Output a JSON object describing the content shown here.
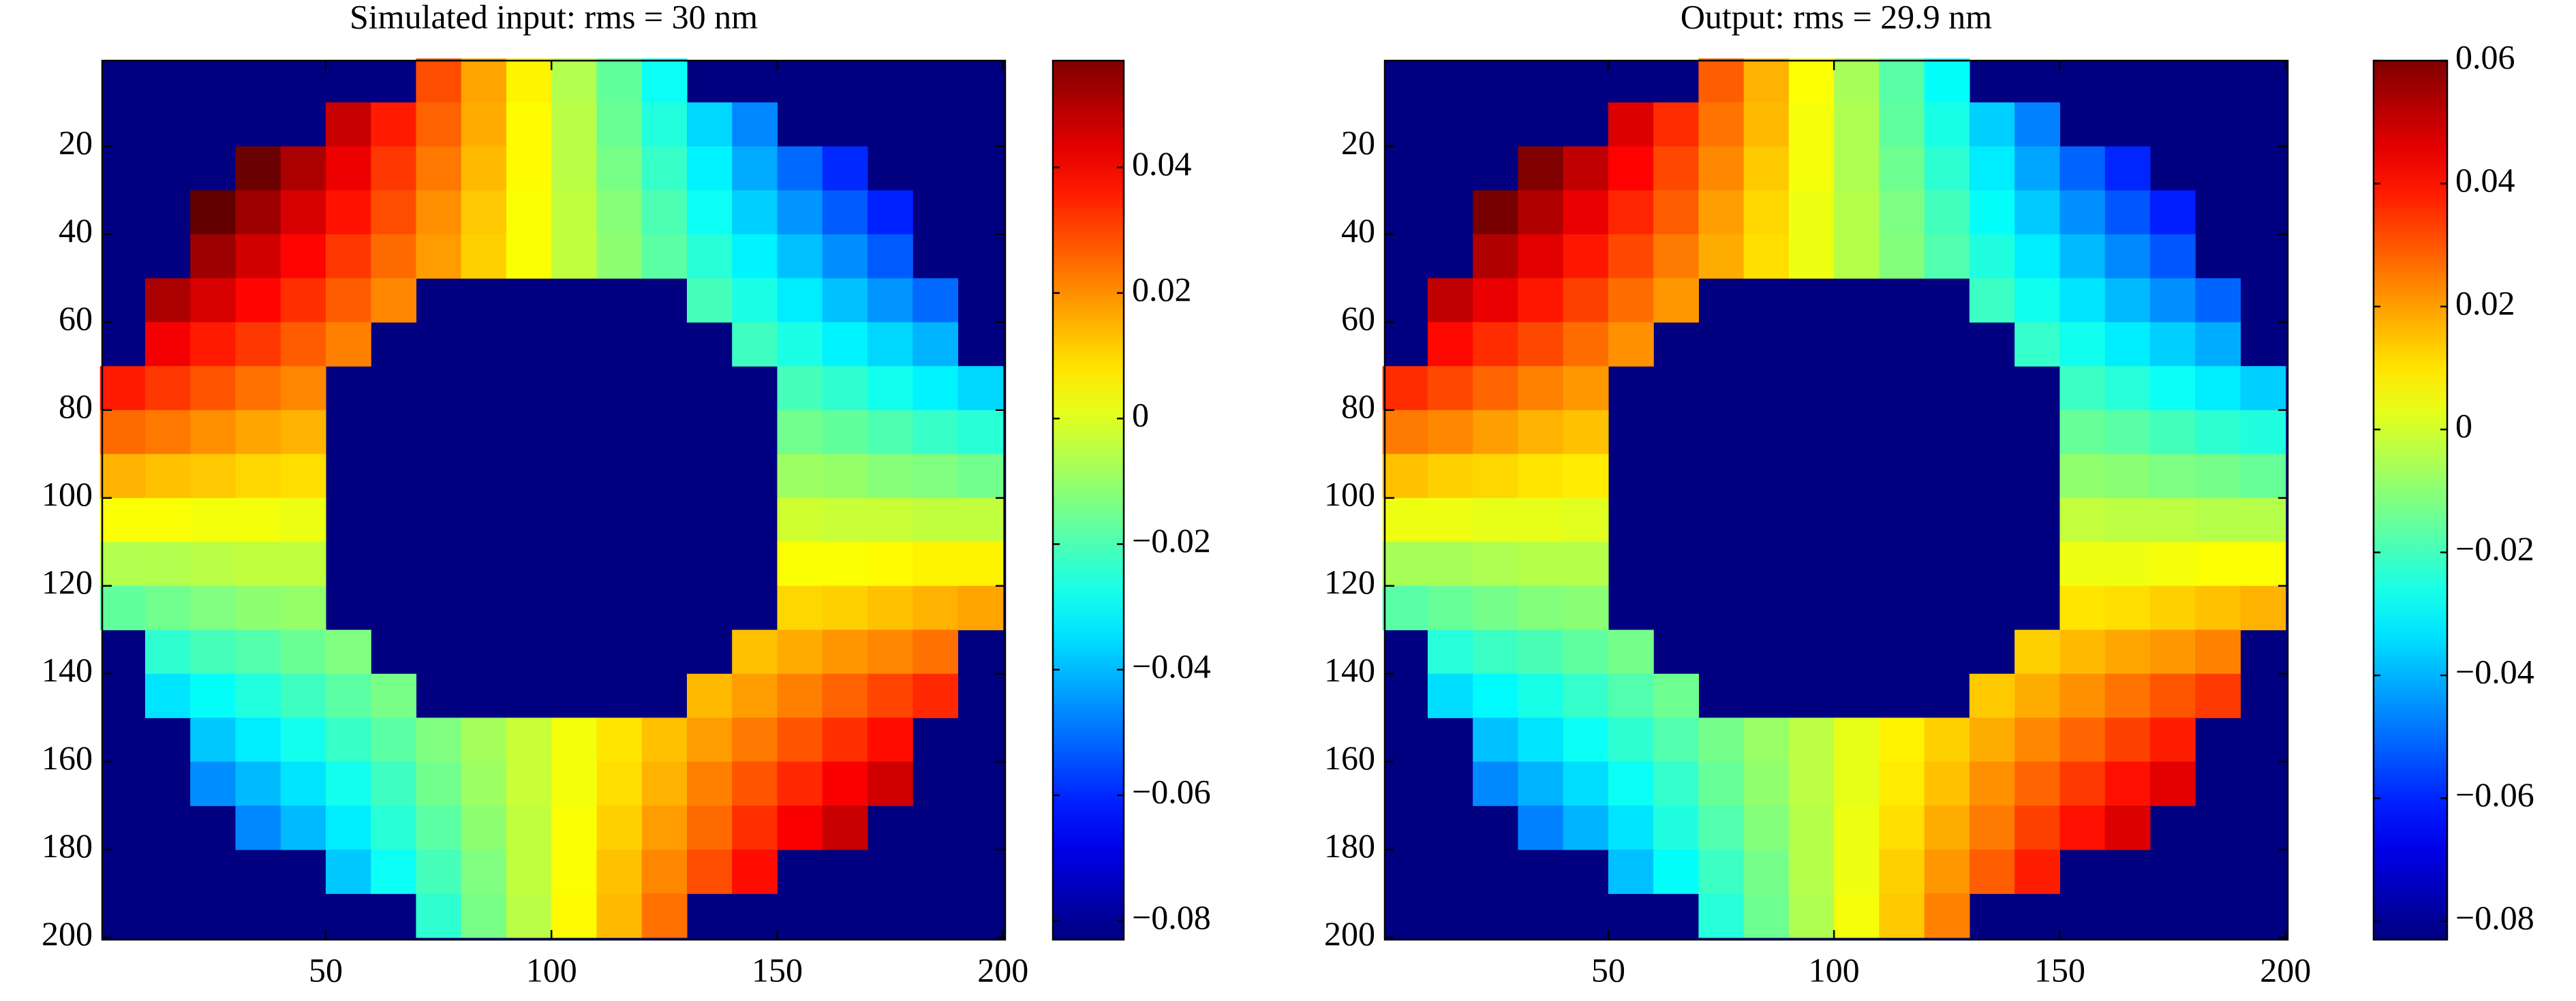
{
  "chart_data": [
    {
      "type": "heatmap",
      "title": "Simulated input: rms = 30 nm",
      "x": [
        5,
        15,
        25,
        35,
        45,
        55,
        65,
        75,
        85,
        95,
        105,
        115,
        125,
        135,
        145,
        155,
        165,
        175,
        185,
        195
      ],
      "y": [
        5,
        15,
        25,
        35,
        45,
        55,
        65,
        75,
        85,
        95,
        105,
        115,
        125,
        135,
        145,
        155,
        165,
        175,
        185,
        195
      ],
      "z": [
        [
          null,
          null,
          null,
          null,
          null,
          null,
          null,
          0.029,
          0.017,
          0.006,
          -0.006,
          -0.017,
          -0.029,
          null,
          null,
          null,
          null,
          null,
          null,
          null
        ],
        [
          null,
          null,
          null,
          null,
          null,
          0.047,
          0.036,
          0.026,
          0.016,
          0.005,
          -0.005,
          -0.016,
          -0.026,
          -0.036,
          -0.047,
          null,
          null,
          null,
          null,
          null
        ],
        [
          null,
          null,
          null,
          0.06,
          0.051,
          0.042,
          0.032,
          0.023,
          0.014,
          0.005,
          -0.005,
          -0.014,
          -0.023,
          -0.032,
          -0.042,
          -0.051,
          -0.06,
          null,
          null,
          null
        ],
        [
          null,
          null,
          0.061,
          0.053,
          0.045,
          0.037,
          0.029,
          0.02,
          0.012,
          0.004,
          -0.004,
          -0.012,
          -0.02,
          -0.029,
          -0.037,
          -0.045,
          -0.053,
          -0.061,
          null,
          null
        ],
        [
          null,
          null,
          0.053,
          0.046,
          0.039,
          0.032,
          0.025,
          0.018,
          0.011,
          0.004,
          -0.004,
          -0.011,
          -0.018,
          -0.025,
          -0.032,
          -0.039,
          -0.046,
          -0.053,
          null,
          null
        ],
        [
          null,
          0.051,
          0.045,
          0.039,
          0.033,
          0.027,
          0.021,
          null,
          null,
          null,
          null,
          null,
          null,
          -0.021,
          -0.027,
          -0.033,
          -0.039,
          -0.045,
          -0.051,
          null
        ],
        [
          null,
          0.041,
          0.036,
          0.032,
          0.027,
          0.022,
          null,
          null,
          null,
          null,
          null,
          null,
          null,
          null,
          -0.022,
          -0.027,
          -0.032,
          -0.036,
          -0.041,
          null
        ],
        [
          0.036,
          0.032,
          0.028,
          0.024,
          0.021,
          null,
          null,
          null,
          null,
          null,
          null,
          null,
          null,
          null,
          null,
          -0.021,
          -0.024,
          -0.028,
          -0.032,
          -0.036
        ],
        [
          0.025,
          0.023,
          0.02,
          0.017,
          0.015,
          null,
          null,
          null,
          null,
          null,
          null,
          null,
          null,
          null,
          null,
          -0.015,
          -0.017,
          -0.02,
          -0.023,
          -0.025
        ],
        [
          0.015,
          0.013,
          0.012,
          0.01,
          0.009,
          null,
          null,
          null,
          null,
          null,
          null,
          null,
          null,
          null,
          null,
          -0.009,
          -0.01,
          -0.012,
          -0.013,
          -0.015
        ],
        [
          0.004,
          0.004,
          0.003,
          0.003,
          0.002,
          null,
          null,
          null,
          null,
          null,
          null,
          null,
          null,
          null,
          null,
          -0.002,
          -0.003,
          -0.003,
          -0.004,
          -0.004
        ],
        [
          -0.006,
          -0.006,
          -0.005,
          -0.004,
          -0.004,
          null,
          null,
          null,
          null,
          null,
          null,
          null,
          null,
          null,
          null,
          0.004,
          0.004,
          0.005,
          0.006,
          0.006
        ],
        [
          -0.017,
          -0.015,
          -0.013,
          -0.011,
          -0.01,
          null,
          null,
          null,
          null,
          null,
          null,
          null,
          null,
          null,
          null,
          0.01,
          0.011,
          0.013,
          0.015,
          0.017
        ],
        [
          null,
          -0.024,
          -0.021,
          -0.019,
          -0.016,
          -0.013,
          null,
          null,
          null,
          null,
          null,
          null,
          null,
          null,
          0.013,
          0.016,
          0.019,
          0.021,
          0.024,
          null
        ],
        [
          null,
          -0.034,
          -0.03,
          -0.026,
          -0.022,
          -0.018,
          -0.014,
          null,
          null,
          null,
          null,
          null,
          null,
          0.014,
          0.018,
          0.022,
          0.026,
          0.03,
          0.034,
          null
        ],
        [
          null,
          null,
          -0.038,
          -0.033,
          -0.028,
          -0.023,
          -0.018,
          -0.013,
          -0.008,
          -0.003,
          0.003,
          0.008,
          0.013,
          0.018,
          0.023,
          0.028,
          0.033,
          0.038,
          null,
          null
        ],
        [
          null,
          null,
          -0.046,
          -0.04,
          -0.034,
          -0.028,
          -0.022,
          -0.015,
          -0.009,
          -0.003,
          0.003,
          0.009,
          0.015,
          0.022,
          0.028,
          0.034,
          0.04,
          0.046,
          null,
          null
        ],
        [
          null,
          null,
          null,
          -0.047,
          -0.04,
          -0.033,
          -0.025,
          -0.018,
          -0.011,
          -0.004,
          0.004,
          0.011,
          0.018,
          0.025,
          0.033,
          0.04,
          0.047,
          null,
          null,
          null
        ],
        [
          null,
          null,
          null,
          null,
          null,
          -0.038,
          -0.029,
          -0.021,
          -0.013,
          -0.004,
          0.004,
          0.013,
          0.021,
          0.029,
          0.038,
          null,
          null,
          null,
          null,
          null
        ],
        [
          null,
          null,
          null,
          null,
          null,
          null,
          null,
          -0.024,
          -0.014,
          -0.005,
          0.005,
          0.014,
          0.024,
          null,
          null,
          null,
          null,
          null,
          null,
          null
        ]
      ],
      "xlim": [
        0.5,
        200.5
      ],
      "ylim": [
        0.5,
        200.5
      ],
      "xticks": [
        50,
        100,
        150,
        200
      ],
      "yticks": [
        20,
        40,
        60,
        80,
        100,
        120,
        140,
        160,
        180,
        200
      ],
      "clim": [
        -0.083,
        0.057
      ],
      "cticks": [
        0.04,
        0.02,
        0,
        {
          "value": -0.02,
          "label": "−0.02"
        },
        {
          "value": -0.04,
          "label": "−0.04"
        },
        {
          "value": -0.06,
          "label": "−0.06"
        },
        {
          "value": -0.08,
          "label": "−0.08"
        }
      ]
    },
    {
      "type": "heatmap",
      "title": "Output: rms = 29.9 nm",
      "x": [
        5,
        15,
        25,
        35,
        45,
        55,
        65,
        75,
        85,
        95,
        105,
        115,
        125,
        135,
        145,
        155,
        165,
        175,
        185,
        195
      ],
      "y": [
        5,
        15,
        25,
        35,
        45,
        55,
        65,
        75,
        85,
        95,
        105,
        115,
        125,
        135,
        145,
        155,
        165,
        175,
        185,
        195
      ],
      "z": [
        [
          null,
          null,
          null,
          null,
          null,
          null,
          null,
          0.029,
          0.017,
          0.006,
          -0.006,
          -0.017,
          -0.029,
          null,
          null,
          null,
          null,
          null,
          null,
          null
        ],
        [
          null,
          null,
          null,
          null,
          null,
          0.047,
          0.036,
          0.026,
          0.016,
          0.005,
          -0.005,
          -0.016,
          -0.026,
          -0.036,
          -0.047,
          null,
          null,
          null,
          null,
          null
        ],
        [
          null,
          null,
          null,
          0.06,
          0.051,
          0.042,
          0.032,
          0.023,
          0.014,
          0.005,
          -0.005,
          -0.014,
          -0.023,
          -0.032,
          -0.042,
          -0.051,
          -0.06,
          null,
          null,
          null
        ],
        [
          null,
          null,
          0.061,
          0.053,
          0.045,
          0.037,
          0.029,
          0.02,
          0.012,
          0.004,
          -0.004,
          -0.012,
          -0.02,
          -0.029,
          -0.037,
          -0.045,
          -0.053,
          -0.061,
          null,
          null
        ],
        [
          null,
          null,
          0.053,
          0.046,
          0.039,
          0.032,
          0.025,
          0.018,
          0.011,
          0.004,
          -0.004,
          -0.011,
          -0.018,
          -0.025,
          -0.032,
          -0.039,
          -0.046,
          -0.053,
          null,
          null
        ],
        [
          null,
          0.051,
          0.045,
          0.039,
          0.033,
          0.027,
          0.021,
          null,
          null,
          null,
          null,
          null,
          null,
          -0.021,
          -0.027,
          -0.033,
          -0.039,
          -0.045,
          -0.051,
          null
        ],
        [
          null,
          0.041,
          0.036,
          0.032,
          0.027,
          0.022,
          null,
          null,
          null,
          null,
          null,
          null,
          null,
          null,
          -0.022,
          -0.027,
          -0.032,
          -0.036,
          -0.041,
          null
        ],
        [
          0.036,
          0.032,
          0.028,
          0.024,
          0.021,
          null,
          null,
          null,
          null,
          null,
          null,
          null,
          null,
          null,
          null,
          -0.021,
          -0.024,
          -0.028,
          -0.032,
          -0.036
        ],
        [
          0.025,
          0.023,
          0.02,
          0.017,
          0.015,
          null,
          null,
          null,
          null,
          null,
          null,
          null,
          null,
          null,
          null,
          -0.015,
          -0.017,
          -0.02,
          -0.023,
          -0.025
        ],
        [
          0.015,
          0.013,
          0.012,
          0.01,
          0.009,
          null,
          null,
          null,
          null,
          null,
          null,
          null,
          null,
          null,
          null,
          -0.009,
          -0.01,
          -0.012,
          -0.013,
          -0.015
        ],
        [
          0.004,
          0.004,
          0.003,
          0.003,
          0.002,
          null,
          null,
          null,
          null,
          null,
          null,
          null,
          null,
          null,
          null,
          -0.002,
          -0.003,
          -0.003,
          -0.004,
          -0.004
        ],
        [
          -0.006,
          -0.006,
          -0.005,
          -0.004,
          -0.004,
          null,
          null,
          null,
          null,
          null,
          null,
          null,
          null,
          null,
          null,
          0.004,
          0.004,
          0.005,
          0.006,
          0.006
        ],
        [
          -0.017,
          -0.015,
          -0.013,
          -0.011,
          -0.01,
          null,
          null,
          null,
          null,
          null,
          null,
          null,
          null,
          null,
          null,
          0.01,
          0.011,
          0.013,
          0.015,
          0.017
        ],
        [
          null,
          -0.024,
          -0.021,
          -0.019,
          -0.016,
          -0.013,
          null,
          null,
          null,
          null,
          null,
          null,
          null,
          null,
          0.013,
          0.016,
          0.019,
          0.021,
          0.024,
          null
        ],
        [
          null,
          -0.034,
          -0.03,
          -0.026,
          -0.022,
          -0.018,
          -0.014,
          null,
          null,
          null,
          null,
          null,
          null,
          0.014,
          0.018,
          0.022,
          0.026,
          0.03,
          0.034,
          null
        ],
        [
          null,
          null,
          -0.038,
          -0.033,
          -0.028,
          -0.023,
          -0.018,
          -0.013,
          -0.008,
          -0.003,
          0.003,
          0.008,
          0.013,
          0.018,
          0.023,
          0.028,
          0.033,
          0.038,
          null,
          null
        ],
        [
          null,
          null,
          -0.046,
          -0.04,
          -0.034,
          -0.028,
          -0.022,
          -0.015,
          -0.009,
          -0.003,
          0.003,
          0.009,
          0.015,
          0.022,
          0.028,
          0.034,
          0.04,
          0.046,
          null,
          null
        ],
        [
          null,
          null,
          null,
          -0.047,
          -0.04,
          -0.033,
          -0.025,
          -0.018,
          -0.011,
          -0.004,
          0.004,
          0.011,
          0.018,
          0.025,
          0.033,
          0.04,
          0.047,
          null,
          null,
          null
        ],
        [
          null,
          null,
          null,
          null,
          null,
          -0.038,
          -0.029,
          -0.021,
          -0.013,
          -0.004,
          0.004,
          0.013,
          0.021,
          0.029,
          0.038,
          null,
          null,
          null,
          null,
          null
        ],
        [
          null,
          null,
          null,
          null,
          null,
          null,
          null,
          -0.024,
          -0.014,
          -0.005,
          0.005,
          0.014,
          0.024,
          null,
          null,
          null,
          null,
          null,
          null,
          null
        ]
      ],
      "xlim": [
        0.5,
        200.5
      ],
      "ylim": [
        0.5,
        200.5
      ],
      "xticks": [
        50,
        100,
        150,
        200
      ],
      "yticks": [
        20,
        40,
        60,
        80,
        100,
        120,
        140,
        160,
        180,
        200
      ],
      "clim": [
        -0.083,
        0.06
      ],
      "cticks": [
        0.06,
        0.04,
        0.02,
        0,
        {
          "value": -0.02,
          "label": "−0.02"
        },
        {
          "value": -0.04,
          "label": "−0.04"
        },
        {
          "value": -0.06,
          "label": "−0.06"
        },
        {
          "value": -0.08,
          "label": "−0.08"
        }
      ]
    }
  ]
}
